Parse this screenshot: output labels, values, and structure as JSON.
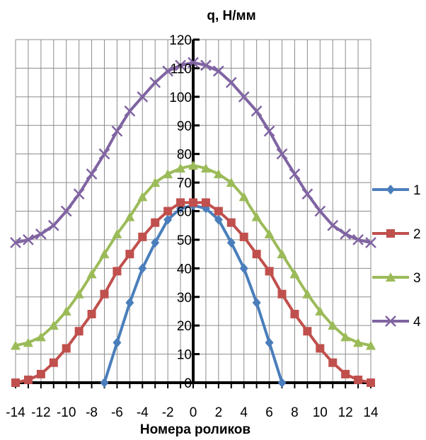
{
  "chart_data": {
    "type": "line",
    "title": "q, Н/мм",
    "xlabel": "Номера  роликов",
    "ylabel": "",
    "xlim": [
      -14,
      14
    ],
    "ylim": [
      0,
      120
    ],
    "x_ticks": [
      -14,
      -12,
      -10,
      -8,
      -6,
      -4,
      -2,
      0,
      2,
      4,
      6,
      8,
      10,
      12,
      14
    ],
    "x_tick_labels": [
      "-14",
      "-12",
      "-10",
      "-8",
      "-6",
      "-4",
      "-2",
      "0",
      "2",
      "4",
      "6",
      "8",
      "10",
      "12",
      "14"
    ],
    "y_ticks": [
      0,
      10,
      20,
      30,
      40,
      50,
      60,
      70,
      80,
      90,
      100,
      110,
      120
    ],
    "y_tick_labels": [
      "0",
      "10",
      "20",
      "30",
      "40",
      "50",
      "60",
      "70",
      "80",
      "90",
      "100",
      "110",
      "120"
    ],
    "grid": true,
    "legend_position": "right",
    "series": [
      {
        "name": "1",
        "color": "#4a7ebb",
        "marker": "diamond",
        "points": [
          [
            -7,
            0
          ],
          [
            -6,
            14
          ],
          [
            -5,
            28
          ],
          [
            -4,
            40
          ],
          [
            -3,
            49
          ],
          [
            -2,
            57
          ],
          [
            -1,
            61
          ],
          [
            0,
            62
          ],
          [
            1,
            61
          ],
          [
            2,
            57
          ],
          [
            3,
            49
          ],
          [
            4,
            40
          ],
          [
            5,
            28
          ],
          [
            6,
            14
          ],
          [
            7,
            0
          ]
        ]
      },
      {
        "name": "2",
        "color": "#c0504d",
        "marker": "square",
        "points": [
          [
            -14,
            0
          ],
          [
            -13,
            1
          ],
          [
            -12,
            3
          ],
          [
            -11,
            7
          ],
          [
            -10,
            12
          ],
          [
            -9,
            18
          ],
          [
            -8,
            24
          ],
          [
            -7,
            31
          ],
          [
            -6,
            39
          ],
          [
            -5,
            45
          ],
          [
            -4,
            51
          ],
          [
            -3,
            56
          ],
          [
            -2,
            60
          ],
          [
            -1,
            63
          ],
          [
            0,
            63
          ],
          [
            1,
            63
          ],
          [
            2,
            60
          ],
          [
            3,
            56
          ],
          [
            4,
            51
          ],
          [
            5,
            45
          ],
          [
            6,
            39
          ],
          [
            7,
            31
          ],
          [
            8,
            24
          ],
          [
            9,
            18
          ],
          [
            10,
            12
          ],
          [
            11,
            7
          ],
          [
            12,
            3
          ],
          [
            13,
            1
          ],
          [
            14,
            0
          ]
        ]
      },
      {
        "name": "3",
        "color": "#9bbb59",
        "marker": "triangle",
        "points": [
          [
            -14,
            13
          ],
          [
            -13,
            14
          ],
          [
            -12,
            16
          ],
          [
            -11,
            20
          ],
          [
            -10,
            25
          ],
          [
            -9,
            31
          ],
          [
            -8,
            38
          ],
          [
            -7,
            45
          ],
          [
            -6,
            52
          ],
          [
            -5,
            58
          ],
          [
            -4,
            65
          ],
          [
            -3,
            70
          ],
          [
            -2,
            73
          ],
          [
            -1,
            75
          ],
          [
            0,
            76
          ],
          [
            1,
            75
          ],
          [
            2,
            73
          ],
          [
            3,
            70
          ],
          [
            4,
            65
          ],
          [
            5,
            58
          ],
          [
            6,
            52
          ],
          [
            7,
            45
          ],
          [
            8,
            38
          ],
          [
            9,
            31
          ],
          [
            10,
            25
          ],
          [
            11,
            20
          ],
          [
            12,
            16
          ],
          [
            13,
            14
          ],
          [
            14,
            13
          ]
        ]
      },
      {
        "name": "4",
        "color": "#8064a2",
        "marker": "x",
        "points": [
          [
            -14,
            49
          ],
          [
            -13,
            50
          ],
          [
            -12,
            52
          ],
          [
            -11,
            55
          ],
          [
            -10,
            60
          ],
          [
            -9,
            66
          ],
          [
            -8,
            73
          ],
          [
            -7,
            80
          ],
          [
            -6,
            88
          ],
          [
            -5,
            95
          ],
          [
            -4,
            100
          ],
          [
            -3,
            105
          ],
          [
            -2,
            109
          ],
          [
            -1,
            111
          ],
          [
            0,
            112
          ],
          [
            1,
            111
          ],
          [
            2,
            109
          ],
          [
            3,
            105
          ],
          [
            4,
            100
          ],
          [
            5,
            95
          ],
          [
            6,
            88
          ],
          [
            7,
            80
          ],
          [
            8,
            73
          ],
          [
            9,
            66
          ],
          [
            10,
            60
          ],
          [
            11,
            55
          ],
          [
            12,
            52
          ],
          [
            13,
            50
          ],
          [
            14,
            49
          ]
        ]
      }
    ]
  }
}
